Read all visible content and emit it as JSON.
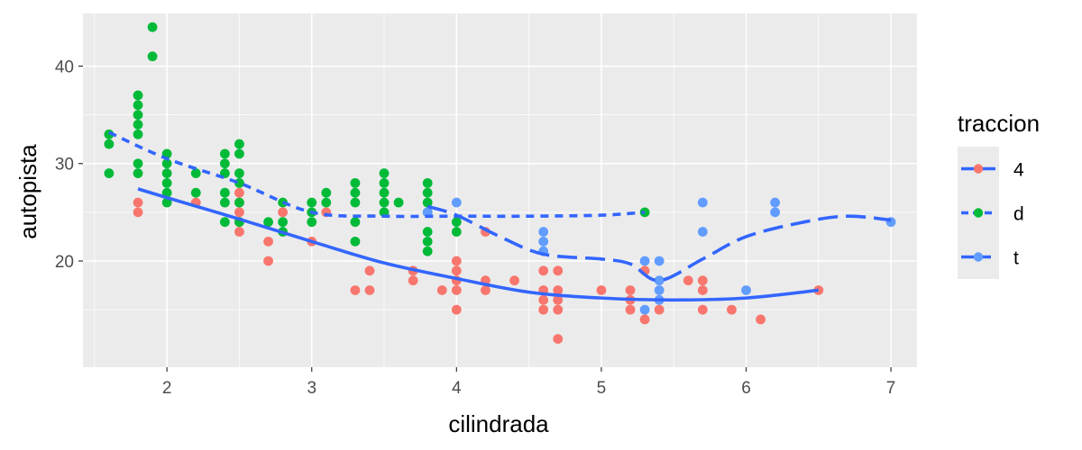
{
  "chart_data": {
    "type": "scatter",
    "xlabel": "cilindrada",
    "ylabel": "autopista",
    "xlim": [
      1.42,
      7.18
    ],
    "ylim": [
      9.1,
      45.4
    ],
    "x_ticks": [
      2,
      3,
      4,
      5,
      6,
      7
    ],
    "y_ticks": [
      20,
      30,
      40
    ],
    "grid": true,
    "legend": {
      "title": "traccion",
      "position": "right",
      "entries": [
        {
          "label": "4",
          "color": "#F8766D",
          "line_color": "#3366FF",
          "linetype": "solid"
        },
        {
          "label": "d",
          "color": "#00BA38",
          "line_color": "#3366FF",
          "linetype": "dashed"
        },
        {
          "label": "t",
          "color": "#619CFF",
          "line_color": "#3366FF",
          "linetype": "longdash"
        }
      ]
    },
    "series": [
      {
        "name": "4",
        "color": "#F8766D",
        "points": [
          [
            1.8,
            26
          ],
          [
            1.8,
            25
          ],
          [
            2.2,
            26
          ],
          [
            2.5,
            27
          ],
          [
            2.5,
            26
          ],
          [
            2.5,
            25
          ],
          [
            2.5,
            24
          ],
          [
            2.5,
            23
          ],
          [
            2.7,
            22
          ],
          [
            2.7,
            20
          ],
          [
            2.8,
            25
          ],
          [
            3.0,
            22
          ],
          [
            3.1,
            25
          ],
          [
            3.3,
            17
          ],
          [
            3.4,
            19
          ],
          [
            3.4,
            17
          ],
          [
            3.7,
            19
          ],
          [
            3.7,
            18
          ],
          [
            3.9,
            17
          ],
          [
            4.0,
            20
          ],
          [
            4.0,
            19
          ],
          [
            4.0,
            18
          ],
          [
            4.0,
            17
          ],
          [
            4.0,
            15
          ],
          [
            4.2,
            23
          ],
          [
            4.2,
            18
          ],
          [
            4.2,
            17
          ],
          [
            4.4,
            18
          ],
          [
            4.6,
            19
          ],
          [
            4.6,
            17
          ],
          [
            4.6,
            16
          ],
          [
            4.6,
            15
          ],
          [
            4.7,
            19
          ],
          [
            4.7,
            17
          ],
          [
            4.7,
            16
          ],
          [
            4.7,
            15
          ],
          [
            4.7,
            12
          ],
          [
            5.0,
            17
          ],
          [
            5.2,
            17
          ],
          [
            5.2,
            16
          ],
          [
            5.2,
            15
          ],
          [
            5.3,
            19
          ],
          [
            5.3,
            14
          ],
          [
            5.4,
            16
          ],
          [
            5.4,
            15
          ],
          [
            5.6,
            18
          ],
          [
            5.7,
            18
          ],
          [
            5.7,
            17
          ],
          [
            5.7,
            15
          ],
          [
            5.9,
            15
          ],
          [
            6.1,
            14
          ],
          [
            6.5,
            17
          ]
        ],
        "smooth": [
          [
            1.8,
            27.4
          ],
          [
            2.0,
            26.5
          ],
          [
            2.5,
            24.3
          ],
          [
            3.0,
            22.0
          ],
          [
            3.5,
            19.8
          ],
          [
            4.0,
            18.2
          ],
          [
            4.5,
            16.8
          ],
          [
            5.0,
            16.2
          ],
          [
            5.5,
            16.0
          ],
          [
            6.0,
            16.2
          ],
          [
            6.5,
            17.0
          ]
        ]
      },
      {
        "name": "d",
        "color": "#00BA38",
        "points": [
          [
            1.6,
            33
          ],
          [
            1.6,
            32
          ],
          [
            1.6,
            29
          ],
          [
            1.8,
            37
          ],
          [
            1.8,
            36
          ],
          [
            1.8,
            35
          ],
          [
            1.8,
            34
          ],
          [
            1.8,
            33
          ],
          [
            1.8,
            30
          ],
          [
            1.8,
            29
          ],
          [
            1.9,
            44
          ],
          [
            1.9,
            41
          ],
          [
            2.0,
            31
          ],
          [
            2.0,
            30
          ],
          [
            2.0,
            29
          ],
          [
            2.0,
            28
          ],
          [
            2.0,
            27
          ],
          [
            2.0,
            26
          ],
          [
            2.2,
            29
          ],
          [
            2.2,
            27
          ],
          [
            2.4,
            31
          ],
          [
            2.4,
            30
          ],
          [
            2.4,
            29
          ],
          [
            2.4,
            27
          ],
          [
            2.4,
            26
          ],
          [
            2.4,
            24
          ],
          [
            2.5,
            32
          ],
          [
            2.5,
            31
          ],
          [
            2.5,
            29
          ],
          [
            2.5,
            28
          ],
          [
            2.5,
            26
          ],
          [
            2.5,
            24
          ],
          [
            2.7,
            24
          ],
          [
            2.8,
            26
          ],
          [
            2.8,
            24
          ],
          [
            2.8,
            23
          ],
          [
            3.0,
            26
          ],
          [
            3.0,
            25
          ],
          [
            3.0,
            24
          ],
          [
            3.1,
            27
          ],
          [
            3.1,
            26
          ],
          [
            3.3,
            28
          ],
          [
            3.3,
            27
          ],
          [
            3.3,
            26
          ],
          [
            3.3,
            24
          ],
          [
            3.3,
            22
          ],
          [
            3.5,
            29
          ],
          [
            3.5,
            28
          ],
          [
            3.5,
            27
          ],
          [
            3.5,
            26
          ],
          [
            3.5,
            25
          ],
          [
            3.6,
            26
          ],
          [
            3.8,
            28
          ],
          [
            3.8,
            27
          ],
          [
            3.8,
            26
          ],
          [
            3.8,
            25
          ],
          [
            3.8,
            23
          ],
          [
            3.8,
            22
          ],
          [
            3.8,
            21
          ],
          [
            4.0,
            24
          ],
          [
            4.0,
            23
          ],
          [
            5.3,
            25
          ]
        ],
        "smooth": [
          [
            1.6,
            33.2
          ],
          [
            2.0,
            30.5
          ],
          [
            2.5,
            28.0
          ],
          [
            3.0,
            25.0
          ],
          [
            3.5,
            24.6
          ],
          [
            4.0,
            24.6
          ],
          [
            4.5,
            24.6
          ],
          [
            5.0,
            24.7
          ],
          [
            5.3,
            25.0
          ]
        ]
      },
      {
        "name": "t",
        "color": "#619CFF",
        "points": [
          [
            3.8,
            25
          ],
          [
            4.0,
            26
          ],
          [
            4.6,
            23
          ],
          [
            4.6,
            22
          ],
          [
            4.6,
            21
          ],
          [
            5.3,
            20
          ],
          [
            5.3,
            15
          ],
          [
            5.4,
            20
          ],
          [
            5.4,
            18
          ],
          [
            5.4,
            17
          ],
          [
            5.4,
            16
          ],
          [
            5.7,
            26
          ],
          [
            5.7,
            23
          ],
          [
            6.0,
            17
          ],
          [
            6.2,
            26
          ],
          [
            6.2,
            25
          ],
          [
            7.0,
            24
          ]
        ],
        "smooth": [
          [
            3.8,
            25.6
          ],
          [
            4.0,
            24.7
          ],
          [
            4.3,
            22.5
          ],
          [
            4.6,
            20.7
          ],
          [
            5.0,
            20.2
          ],
          [
            5.2,
            19.7
          ],
          [
            5.4,
            18.0
          ],
          [
            5.7,
            20.2
          ],
          [
            6.0,
            22.5
          ],
          [
            6.4,
            24.0
          ],
          [
            6.7,
            24.6
          ],
          [
            7.0,
            24.2
          ]
        ]
      }
    ]
  }
}
